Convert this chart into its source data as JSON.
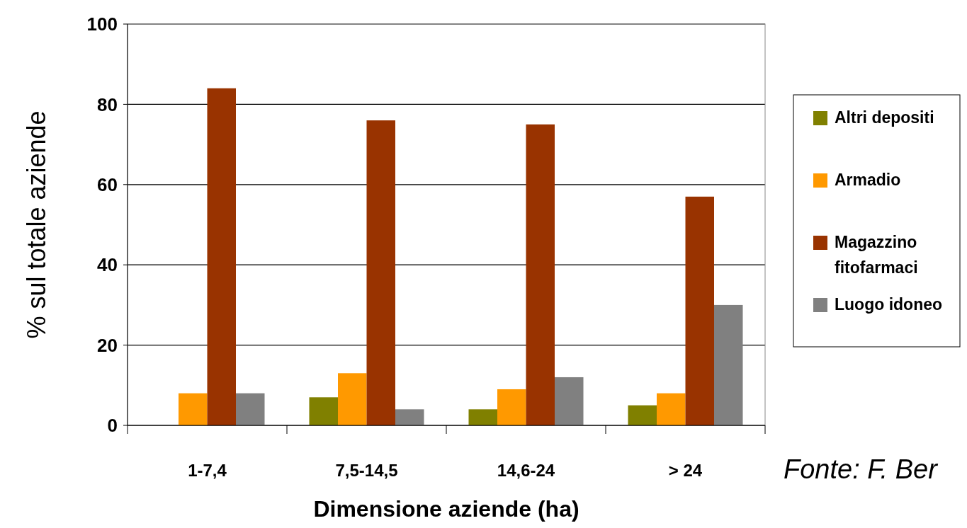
{
  "chart_data": {
    "type": "bar",
    "xlabel": "Dimensione aziende (ha)",
    "ylabel": "% sul totale aziende",
    "categories": [
      "1-7,4",
      "7,5-14,5",
      "14,6-24",
      "> 24"
    ],
    "series": [
      {
        "name": "Altri depositi",
        "color": "#808000",
        "values": [
          0,
          7,
          4,
          5
        ]
      },
      {
        "name": "Armadio",
        "color": "#ff9900",
        "values": [
          8,
          13,
          9,
          8
        ]
      },
      {
        "name": "Magazzino fitofarmaci",
        "color": "#993300",
        "values": [
          84,
          76,
          75,
          57
        ]
      },
      {
        "name": "Luogo idoneo",
        "color": "#808080",
        "values": [
          8,
          4,
          12,
          30
        ]
      }
    ],
    "ylim": [
      0,
      100
    ],
    "yticks": [
      0,
      20,
      40,
      60,
      80,
      100
    ],
    "grid": "y",
    "legend": "right",
    "annotations": [
      "Fonte: F. Ber"
    ]
  }
}
